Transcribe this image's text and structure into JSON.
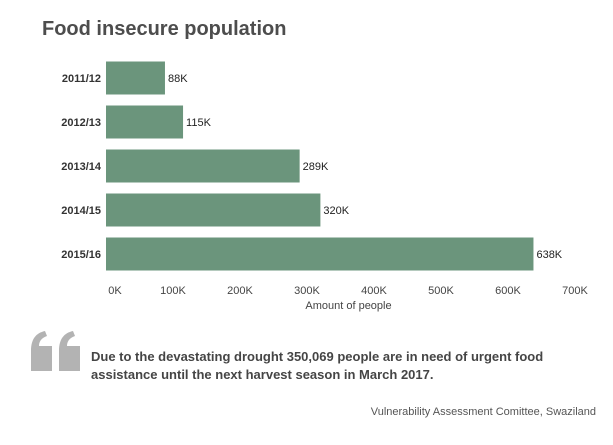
{
  "title": "Food insecure population",
  "chart_data": {
    "type": "bar",
    "orientation": "horizontal",
    "categories": [
      "2011/12",
      "2012/13",
      "2013/14",
      "2014/15",
      "2015/16"
    ],
    "values": [
      88000,
      115000,
      289000,
      320000,
      638000
    ],
    "value_labels": [
      "88K",
      "115K",
      "289K",
      "320K",
      "638K"
    ],
    "xlabel": "Amount of people",
    "ylabel": "",
    "xlim": [
      0,
      700000
    ],
    "x_ticks": [
      0,
      100000,
      200000,
      300000,
      400000,
      500000,
      600000,
      700000
    ],
    "x_tick_labels": [
      "0K",
      "100K",
      "200K",
      "300K",
      "400K",
      "500K",
      "600K",
      "700K"
    ],
    "grid": false,
    "bar_color": "#6b957c"
  },
  "quote": {
    "icon": "quote-icon",
    "icon_color": "#b3b3b3",
    "text": "Due to the devastating drought 350,069 people are in need of urgent food assistance until the next harvest season in March 2017."
  },
  "source": "Vulnerability Assessment Comittee, Swaziland"
}
